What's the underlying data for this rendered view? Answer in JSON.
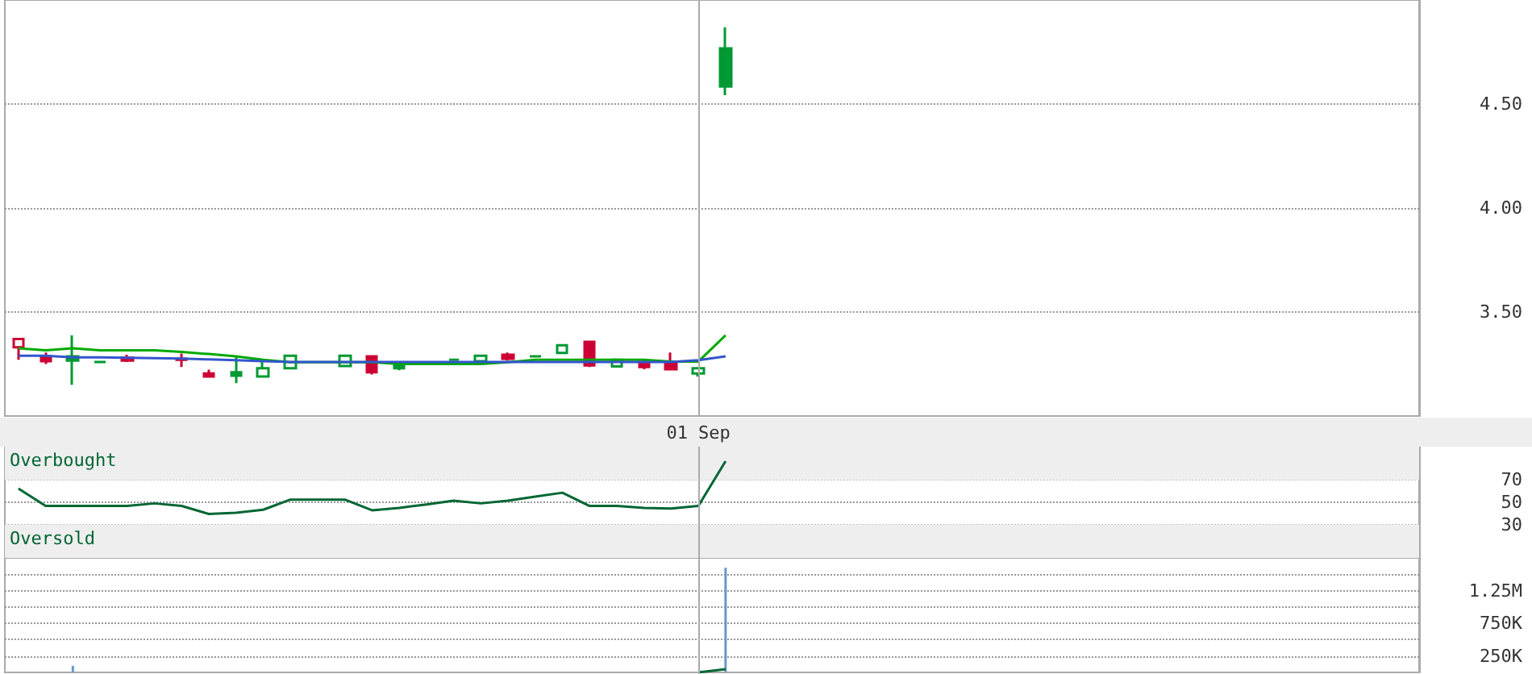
{
  "chart_data": [
    {
      "type": "candlestick",
      "categories": [
        null,
        null,
        null,
        null,
        null,
        null,
        null,
        null,
        null,
        null,
        null,
        null,
        null,
        null,
        null,
        null,
        null,
        null,
        null,
        null,
        null,
        null,
        null,
        null,
        null,
        "01 Sep",
        null,
        null,
        null,
        null,
        null,
        null,
        null,
        null,
        null,
        null,
        null,
        null,
        null,
        null,
        null,
        null,
        null,
        null,
        null,
        null,
        null,
        null,
        null,
        null,
        null,
        null
      ],
      "ylim": [
        3.0,
        5.0
      ],
      "yticks": [
        {
          "value": 3.5,
          "label": "3.50"
        },
        {
          "value": 4.0,
          "label": "4.00"
        },
        {
          "value": 4.5,
          "label": "4.50"
        }
      ],
      "grid": "y",
      "marker": "none",
      "ref_lines": [
        {
          "axis": "x",
          "value": "01 Sep",
          "color": "#aaaaaa"
        }
      ],
      "series": [
        {
          "ohlc": [
            [
              3.33,
              3.37,
              3.27,
              3.37
            ],
            [
              3.287,
              3.305,
              3.25,
              3.264
            ],
            [
              3.287,
              3.388,
              3.15,
              3.266
            ],
            [
              3.26,
              3.26,
              3.26,
              3.26
            ],
            [
              3.28,
              3.295,
              3.26,
              3.266
            ],
            null,
            [
              3.275,
              3.3,
              3.235,
              3.27
            ],
            [
              3.204,
              3.223,
              3.19,
              3.19
            ],
            [
              3.21,
              3.287,
              3.158,
              3.194
            ],
            [
              3.19,
              3.27,
              3.19,
              3.23
            ],
            [
              3.23,
              3.29,
              3.23,
              3.29
            ],
            null,
            [
              3.24,
              3.29,
              3.24,
              3.29
            ],
            [
              3.287,
              3.287,
              3.2,
              3.21
            ],
            [
              3.256,
              3.256,
              3.22,
              3.23
            ],
            null,
            [
              3.27,
              3.27,
              3.27,
              3.27
            ],
            [
              3.264,
              3.29,
              3.25,
              3.29
            ],
            [
              3.295,
              3.305,
              3.266,
              3.275
            ],
            [
              3.287,
              3.287,
              3.287,
              3.287
            ],
            [
              3.303,
              3.34,
              3.303,
              3.34
            ],
            [
              3.357,
              3.357,
              3.235,
              3.243
            ],
            [
              3.238,
              3.27,
              3.238,
              3.27
            ],
            [
              3.26,
              3.275,
              3.225,
              3.235
            ],
            [
              3.258,
              3.305,
              3.22,
              3.225
            ],
            [
              3.204,
              3.23,
              3.19,
              3.23
            ],
            [
              4.767,
              4.868,
              4.543,
              4.584
            ],
            null,
            null,
            null,
            null,
            null,
            null,
            null,
            null,
            null,
            null,
            null,
            null,
            null,
            null,
            null,
            null,
            null,
            null,
            null,
            null,
            null,
            null,
            null,
            null,
            null
          ],
          "colors": [
            "#cc0033",
            "#cc0033",
            "#009933",
            "#009933",
            "#cc0033",
            null,
            "#cc0033",
            "#cc0033",
            "#009933",
            "#009933",
            "#009933",
            null,
            "#009933",
            "#cc0033",
            "#009933",
            null,
            "#009933",
            "#009933",
            "#cc0033",
            "#009933",
            "#009933",
            "#cc0033",
            "#009933",
            "#cc0033",
            "#cc0033",
            "#009933",
            "#009933",
            null,
            null,
            null,
            null,
            null,
            null,
            null,
            null,
            null,
            null,
            null,
            null,
            null,
            null,
            null,
            null,
            null,
            null,
            null,
            null,
            null,
            null,
            null,
            null,
            null
          ]
        },
        {
          "type": "line",
          "color": "#00aa00",
          "values": [
            3.326,
            3.316,
            3.326,
            3.316,
            3.316,
            3.316,
            3.308,
            3.298,
            3.287,
            3.27,
            3.259,
            3.259,
            3.259,
            3.259,
            3.25,
            3.25,
            3.25,
            3.25,
            3.259,
            3.27,
            3.27,
            3.27,
            3.27,
            3.27,
            3.262,
            3.262,
            3.388,
            null,
            null,
            null,
            null,
            null,
            null,
            null,
            null,
            null,
            null,
            null,
            null,
            null,
            null,
            null,
            null,
            null,
            null,
            null,
            null,
            null,
            null,
            null,
            null,
            null
          ]
        },
        {
          "type": "line",
          "color": "#3355cc",
          "values": [
            3.29,
            3.29,
            3.282,
            3.282,
            3.28,
            3.278,
            3.276,
            3.272,
            3.268,
            3.264,
            3.26,
            3.26,
            3.26,
            3.26,
            3.26,
            3.26,
            3.26,
            3.26,
            3.26,
            3.26,
            3.26,
            3.26,
            3.26,
            3.26,
            3.26,
            3.268,
            3.287,
            null,
            null,
            null,
            null,
            null,
            null,
            null,
            null,
            null,
            null,
            null,
            null,
            null,
            null,
            null,
            null,
            null,
            null,
            null,
            null,
            null,
            null,
            null,
            null,
            null
          ]
        }
      ]
    },
    {
      "type": "line",
      "categories": [
        null,
        null,
        null,
        null,
        null,
        null,
        null,
        null,
        null,
        null,
        null,
        null,
        null,
        null,
        null,
        null,
        null,
        null,
        null,
        null,
        null,
        null,
        null,
        null,
        null,
        null,
        null,
        null,
        null,
        null,
        null,
        null,
        null,
        null,
        null,
        null,
        null,
        null,
        null,
        null,
        null,
        null,
        null,
        null,
        null,
        null,
        null,
        null,
        null,
        null,
        null,
        null
      ],
      "tick_labels": "y",
      "ylim": [
        0,
        100
      ],
      "yticks": [
        30,
        50,
        70
      ],
      "grid": "y",
      "marker": "none",
      "bands": [
        {
          "axis": "y",
          "from": 70,
          "to": 100,
          "label": "Overbought",
          "color": "#eeeeee"
        },
        {
          "axis": "y",
          "from": 0,
          "to": 30,
          "label": "Oversold",
          "color": "#eeeeee"
        }
      ],
      "series": [
        {
          "color": "#006633",
          "values": [
            62.4,
            46.7,
            46.7,
            46.7,
            46.7,
            49,
            46.7,
            39.5,
            40.5,
            43.3,
            52.4,
            52.4,
            52.4,
            42.8,
            45,
            48,
            51.4,
            49,
            51.4,
            55,
            58.6,
            46.7,
            46.7,
            45,
            44.3,
            46.7,
            87,
            null,
            null,
            null,
            null,
            null,
            null,
            null,
            null,
            null,
            null,
            null,
            null,
            null,
            null,
            null,
            null,
            null,
            null,
            null,
            null,
            null,
            null,
            null,
            null,
            null
          ]
        }
      ]
    },
    {
      "type": "bar",
      "categories": [
        null,
        null,
        null,
        null,
        null,
        null,
        null,
        null,
        null,
        null,
        null,
        null,
        null,
        null,
        null,
        null,
        null,
        null,
        null,
        null,
        null,
        null,
        null,
        null,
        null,
        null,
        null,
        null,
        null,
        null,
        null,
        null,
        null,
        null,
        null,
        null,
        null,
        null,
        null,
        null,
        null,
        null,
        null,
        null,
        null,
        null,
        null,
        null,
        null,
        null,
        null,
        null
      ],
      "tick_labels": "y",
      "ylim": [
        0,
        1750000
      ],
      "yticks": [
        {
          "value": 250000,
          "label": "250K"
        },
        {
          "value": 500000,
          "label": null
        },
        {
          "value": 750000,
          "label": "750K"
        },
        {
          "value": 1000000,
          "label": null
        },
        {
          "value": 1250000,
          "label": "1.25M"
        },
        {
          "value": 1500000,
          "label": null
        }
      ],
      "grid": "y",
      "marker": "none",
      "series": [
        {
          "color": "#6699cc",
          "values": [
            null,
            null,
            100000,
            null,
            null,
            null,
            null,
            null,
            null,
            null,
            null,
            null,
            null,
            null,
            null,
            null,
            null,
            null,
            null,
            null,
            null,
            null,
            null,
            null,
            null,
            null,
            1600000,
            null,
            null,
            null,
            null,
            null,
            null,
            null,
            null,
            null,
            null,
            null,
            null,
            null,
            null,
            null,
            null,
            null,
            null,
            null,
            null,
            null,
            null,
            null,
            null,
            null
          ]
        },
        {
          "type": "line",
          "color": "#006633",
          "values": [
            null,
            null,
            null,
            null,
            null,
            null,
            null,
            null,
            null,
            null,
            null,
            null,
            null,
            null,
            null,
            null,
            null,
            null,
            null,
            null,
            null,
            null,
            null,
            null,
            null,
            0,
            50000,
            null,
            null,
            null,
            null,
            null,
            null,
            null,
            null,
            null,
            null,
            null,
            null,
            null,
            null,
            null,
            null,
            null,
            null,
            null,
            null,
            null,
            null,
            null,
            null,
            null
          ]
        }
      ]
    }
  ]
}
